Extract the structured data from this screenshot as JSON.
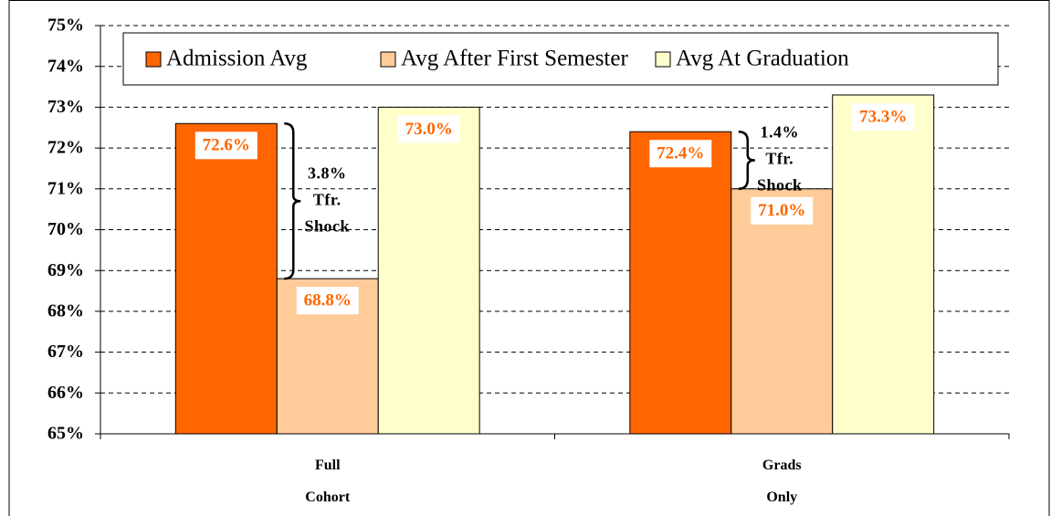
{
  "chart_data": {
    "type": "bar",
    "categories": [
      "Full Cohort",
      "Grads Only"
    ],
    "series": [
      {
        "name": "Admission Avg",
        "color": "#ff6600",
        "values": [
          72.6,
          72.4
        ],
        "value_labels": [
          "72.6%",
          "72.4%"
        ]
      },
      {
        "name": "Avg After First Semester",
        "color": "#ffcc99",
        "values": [
          68.8,
          71.0
        ],
        "value_labels": [
          "68.8%",
          "71.0%"
        ]
      },
      {
        "name": "Avg At Graduation",
        "color": "#ffffcc",
        "values": [
          73.0,
          73.3
        ],
        "value_labels": [
          "73.0%",
          "73.3%"
        ]
      }
    ],
    "ylim": [
      65,
      75
    ],
    "yticks": [
      {
        "value": 65,
        "label": "65%"
      },
      {
        "value": 66,
        "label": "66%"
      },
      {
        "value": 67,
        "label": "67%"
      },
      {
        "value": 68,
        "label": "68%"
      },
      {
        "value": 69,
        "label": "69%"
      },
      {
        "value": 70,
        "label": "70%"
      },
      {
        "value": 71,
        "label": "71%"
      },
      {
        "value": 72,
        "label": "72%"
      },
      {
        "value": 73,
        "label": "73%"
      },
      {
        "value": 74,
        "label": "74%"
      },
      {
        "value": 75,
        "label": "75%"
      }
    ],
    "grid": true,
    "legend": "top",
    "value_label_color": "#ff6600",
    "annotations": [
      {
        "lines": [
          "3.8%",
          "Tfr.",
          "Shock"
        ]
      },
      {
        "lines": [
          "1.4%",
          "Tfr.",
          "Shock"
        ]
      }
    ]
  }
}
